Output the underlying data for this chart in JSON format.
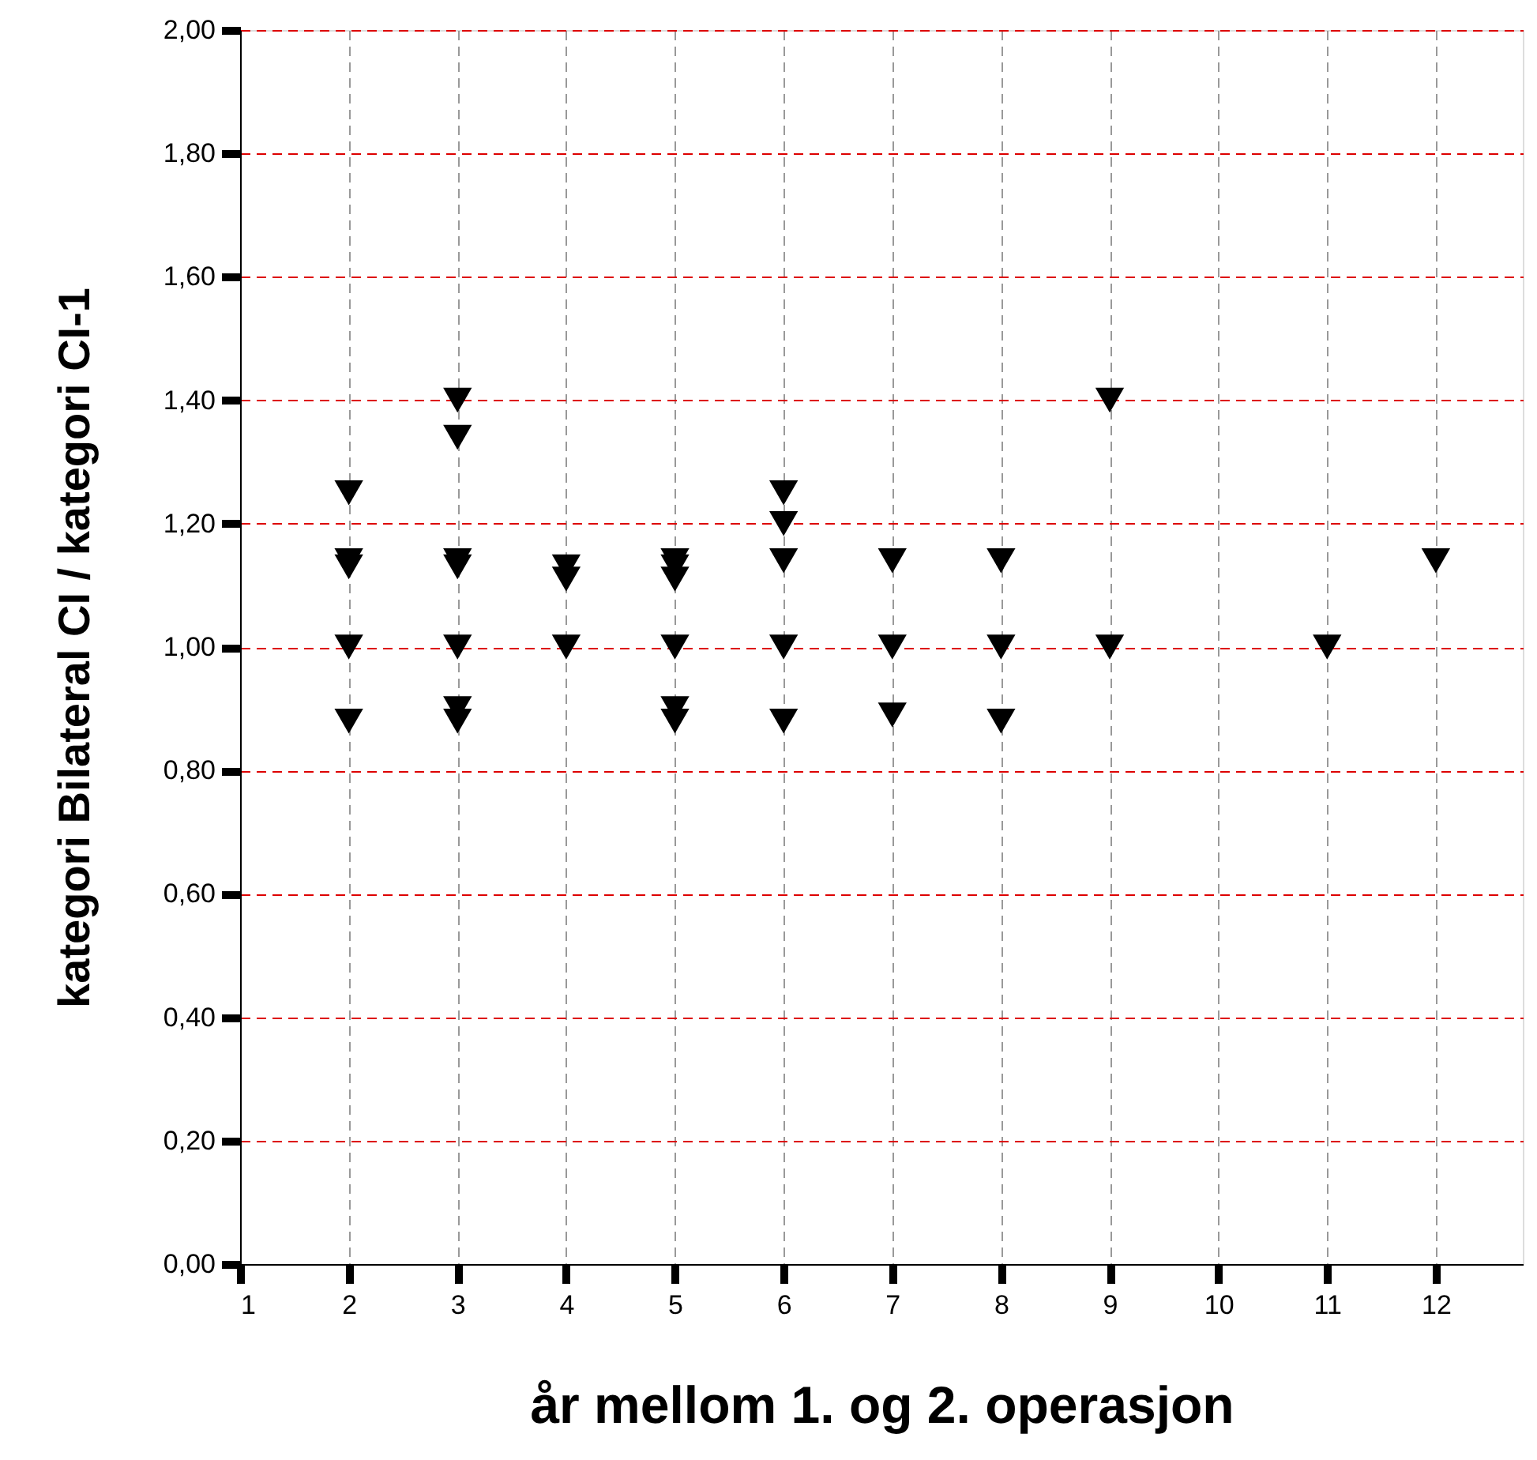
{
  "chart_data": {
    "type": "scatter",
    "xlabel": "år mellom 1. og 2. operasjon",
    "ylabel": "kategori Bilateral CI / kategori CI-1",
    "x": [
      2,
      2,
      2,
      2,
      2,
      3,
      3,
      3,
      3,
      3,
      3,
      3,
      4,
      4,
      4,
      5,
      5,
      5,
      5,
      5,
      5,
      6,
      6,
      6,
      6,
      6,
      7,
      7,
      7,
      8,
      8,
      8,
      9,
      9,
      11,
      12
    ],
    "series": [
      {
        "color": "#000000",
        "values": [
          1.25,
          1.14,
          1.13,
          1.0,
          0.88,
          1.4,
          1.34,
          1.14,
          1.13,
          1.0,
          0.9,
          0.88,
          1.13,
          1.11,
          1.0,
          1.14,
          1.13,
          1.11,
          1.0,
          0.9,
          0.88,
          1.25,
          1.2,
          1.14,
          1.0,
          0.88,
          1.14,
          1.0,
          0.89,
          1.14,
          1.0,
          0.88,
          1.4,
          1.0,
          1.0,
          1.14
        ]
      }
    ],
    "xlim": [
      1,
      12.8
    ],
    "xticks": [
      1,
      2,
      3,
      4,
      5,
      6,
      7,
      8,
      9,
      10,
      11,
      12
    ],
    "ylim": [
      0,
      2
    ],
    "yticks": [
      {
        "value": 0,
        "label": "0,00"
      },
      {
        "value": 0.2,
        "label": "0,20"
      },
      {
        "value": 0.4,
        "label": "0,40"
      },
      {
        "value": 0.6,
        "label": "0,60"
      },
      {
        "value": 0.8,
        "label": "0,80"
      },
      {
        "value": 1.0,
        "label": "1,00"
      },
      {
        "value": 1.2,
        "label": "1,20"
      },
      {
        "value": 1.4,
        "label": "1,40"
      },
      {
        "value": 1.6,
        "label": "1,60"
      },
      {
        "value": 1.8,
        "label": "1,80"
      },
      {
        "value": 2.0,
        "label": "2,00"
      }
    ],
    "grid": true,
    "marker": "triangle",
    "legend": false
  }
}
